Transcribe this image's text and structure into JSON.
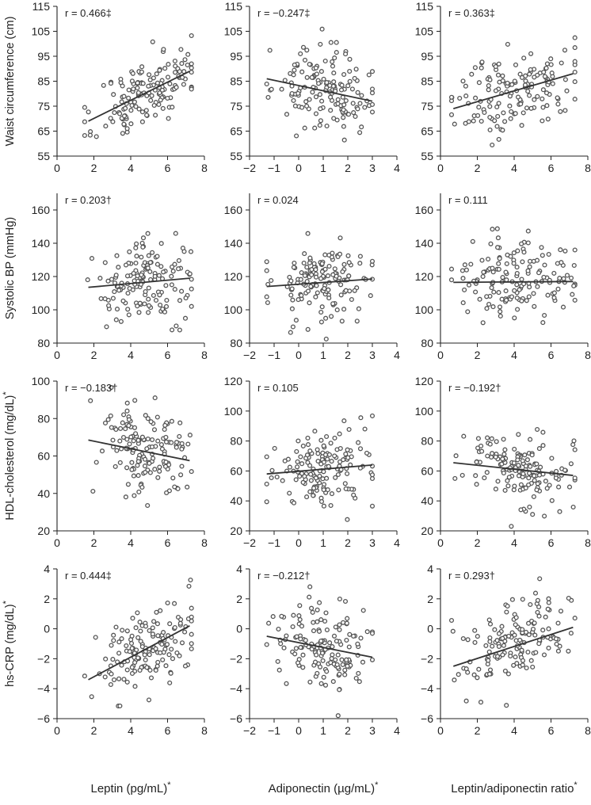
{
  "figure": {
    "type": "scatter_matrix",
    "row_labels": [
      "Waist circumference (cm)",
      "Systolic BP (mmHg)",
      "HDL-cholesterol (mg/dL)",
      "hs-CRP (mg/dL)"
    ],
    "row_label_stars": [
      "",
      "",
      "*",
      "*"
    ],
    "col_labels": [
      "Leptin (pg/mL)",
      "Adiponectin (µg/mL)",
      "Leptin/adiponectin ratio"
    ],
    "col_label_stars": [
      "*",
      "*",
      "*"
    ],
    "colors": {
      "point": "#555555",
      "line": "#333333",
      "axis": "#222222"
    }
  },
  "chart_data": [
    {
      "type": "scatter",
      "row": 0,
      "col": 0,
      "title": "r = 0.466‡",
      "xlabel": "Leptin (pg/mL)*",
      "ylabel": "Waist circumference (cm)",
      "xlim": [
        0,
        8
      ],
      "ylim": [
        55,
        115
      ],
      "xticks": [
        0,
        2,
        4,
        6,
        8
      ],
      "yticks": [
        55,
        65,
        75,
        85,
        95,
        105,
        115
      ],
      "trend": {
        "x1": 1.7,
        "y1": 69,
        "x2": 7.2,
        "y2": 89
      },
      "n_points": 150,
      "seed": 11,
      "xrange": [
        1.5,
        7.3
      ],
      "xcenter": 4.9,
      "resid": 7
    },
    {
      "type": "scatter",
      "row": 0,
      "col": 1,
      "title": "r = −0.247‡",
      "xlabel": "Adiponectin (µg/mL)*",
      "ylabel": "Waist circumference (cm)",
      "xlim": [
        -2,
        4
      ],
      "ylim": [
        55,
        115
      ],
      "xticks": [
        -2,
        -1,
        0,
        1,
        2,
        3,
        4
      ],
      "yticks": [
        55,
        65,
        75,
        85,
        95,
        105,
        115
      ],
      "trend": {
        "x1": -1.3,
        "y1": 86,
        "x2": 3.0,
        "y2": 77
      },
      "n_points": 150,
      "seed": 23,
      "xrange": [
        -1.3,
        3.0
      ],
      "xcenter": 1.0,
      "resid": 8
    },
    {
      "type": "scatter",
      "row": 0,
      "col": 2,
      "title": "r = 0.363‡",
      "xlabel": "Leptin/adiponectin ratio*",
      "ylabel": "Waist circumference (cm)",
      "xlim": [
        0,
        8
      ],
      "ylim": [
        55,
        115
      ],
      "xticks": [
        0,
        2,
        4,
        6,
        8
      ],
      "yticks": [
        55,
        65,
        75,
        85,
        95,
        105,
        115
      ],
      "trend": {
        "x1": 0.7,
        "y1": 74,
        "x2": 7.2,
        "y2": 88
      },
      "n_points": 150,
      "seed": 37,
      "xrange": [
        0.6,
        7.3
      ],
      "xcenter": 4.0,
      "resid": 8
    },
    {
      "type": "scatter",
      "row": 1,
      "col": 0,
      "title": "r = 0.203†",
      "xlabel": "Leptin (pg/mL)*",
      "ylabel": "Systolic BP (mmHg)",
      "xlim": [
        0,
        8
      ],
      "ylim": [
        80,
        170
      ],
      "xticks": [
        0,
        2,
        4,
        6,
        8
      ],
      "yticks": [
        80,
        100,
        120,
        140,
        160
      ],
      "trend": {
        "x1": 1.7,
        "y1": 113.5,
        "x2": 7.2,
        "y2": 119
      },
      "n_points": 150,
      "seed": 41,
      "xrange": [
        1.5,
        7.3
      ],
      "xcenter": 4.9,
      "resid": 12
    },
    {
      "type": "scatter",
      "row": 1,
      "col": 1,
      "title": "r = 0.024",
      "xlabel": "Adiponectin (µg/mL)*",
      "ylabel": "Systolic BP (mmHg)",
      "xlim": [
        -2,
        4
      ],
      "ylim": [
        80,
        170
      ],
      "xticks": [
        -2,
        -1,
        0,
        1,
        2,
        3,
        4
      ],
      "yticks": [
        80,
        100,
        120,
        140,
        160
      ],
      "trend": {
        "x1": -1.3,
        "y1": 114,
        "x2": 3.0,
        "y2": 118.5
      },
      "n_points": 150,
      "seed": 53,
      "xrange": [
        -1.3,
        3.0
      ],
      "xcenter": 1.0,
      "resid": 12
    },
    {
      "type": "scatter",
      "row": 1,
      "col": 2,
      "title": "r = 0.111",
      "xlabel": "Leptin/adiponectin ratio*",
      "ylabel": "Systolic BP (mmHg)",
      "xlim": [
        0,
        8
      ],
      "ylim": [
        80,
        170
      ],
      "xticks": [
        0,
        2,
        4,
        6,
        8
      ],
      "yticks": [
        80,
        100,
        120,
        140,
        160
      ],
      "trend": {
        "x1": 0.7,
        "y1": 116.5,
        "x2": 7.2,
        "y2": 117
      },
      "n_points": 150,
      "seed": 67,
      "xrange": [
        0.6,
        7.3
      ],
      "xcenter": 4.0,
      "resid": 12
    },
    {
      "type": "scatter",
      "row": 2,
      "col": 0,
      "title": "r = −0.183†",
      "xlabel": "Leptin (pg/mL)*",
      "ylabel": "HDL-cholesterol (mg/dL)*",
      "xlim": [
        0,
        8
      ],
      "ylim": [
        20,
        100
      ],
      "xticks": [
        0,
        2,
        4,
        6,
        8
      ],
      "yticks": [
        20,
        40,
        60,
        80,
        100
      ],
      "trend": {
        "x1": 1.7,
        "y1": 68.5,
        "x2": 7.2,
        "y2": 57.5
      },
      "n_points": 150,
      "seed": 71,
      "xrange": [
        1.5,
        7.3
      ],
      "xcenter": 4.9,
      "resid": 13
    },
    {
      "type": "scatter",
      "row": 2,
      "col": 1,
      "title": "r = 0.105",
      "xlabel": "Adiponectin (µg/mL)*",
      "ylabel": "HDL-cholesterol (mg/dL)*",
      "xlim": [
        -2,
        4
      ],
      "ylim": [
        20,
        120
      ],
      "xticks": [
        -2,
        -1,
        0,
        1,
        2,
        3,
        4
      ],
      "yticks": [
        20,
        40,
        60,
        80,
        100,
        120
      ],
      "trend": {
        "x1": -1.3,
        "y1": 58,
        "x2": 3.0,
        "y2": 64
      },
      "n_points": 150,
      "seed": 83,
      "xrange": [
        -1.3,
        3.0
      ],
      "xcenter": 1.0,
      "resid": 13
    },
    {
      "type": "scatter",
      "row": 2,
      "col": 2,
      "title": "r = −0.192†",
      "xlabel": "Leptin/adiponectin ratio*",
      "ylabel": "HDL-cholesterol (mg/dL)*",
      "xlim": [
        0,
        8
      ],
      "ylim": [
        20,
        120
      ],
      "xticks": [
        0,
        2,
        4,
        6,
        8
      ],
      "yticks": [
        20,
        40,
        60,
        80,
        100,
        120
      ],
      "trend": {
        "x1": 0.7,
        "y1": 65.5,
        "x2": 7.2,
        "y2": 57
      },
      "n_points": 150,
      "seed": 97,
      "xrange": [
        0.6,
        7.3
      ],
      "xcenter": 4.0,
      "resid": 13
    },
    {
      "type": "scatter",
      "row": 3,
      "col": 0,
      "title": "r = 0.444‡",
      "xlabel": "Leptin (pg/mL)*",
      "ylabel": "hs-CRP (mg/dL)*",
      "xlim": [
        0,
        8
      ],
      "ylim": [
        -6,
        4
      ],
      "xticks": [
        0,
        2,
        4,
        6,
        8
      ],
      "yticks": [
        -6,
        -4,
        -2,
        0,
        2,
        4
      ],
      "trend": {
        "x1": 1.7,
        "y1": -3.4,
        "x2": 7.2,
        "y2": 0.2
      },
      "n_points": 150,
      "seed": 101,
      "xrange": [
        1.5,
        7.3
      ],
      "xcenter": 4.9,
      "resid": 1.3
    },
    {
      "type": "scatter",
      "row": 3,
      "col": 1,
      "title": "r = −0.212†",
      "xlabel": "Adiponectin (µg/mL)*",
      "ylabel": "hs-CRP (mg/dL)*",
      "xlim": [
        -2,
        4
      ],
      "ylim": [
        -6,
        4
      ],
      "xticks": [
        -2,
        -1,
        0,
        1,
        2,
        3,
        4
      ],
      "yticks": [
        -6,
        -4,
        -2,
        0,
        2,
        4
      ],
      "trend": {
        "x1": -1.3,
        "y1": -0.5,
        "x2": 3.0,
        "y2": -1.9
      },
      "n_points": 150,
      "seed": 113,
      "xrange": [
        -1.3,
        3.0
      ],
      "xcenter": 1.0,
      "resid": 1.4
    },
    {
      "type": "scatter",
      "row": 3,
      "col": 2,
      "title": "r = 0.293†",
      "xlabel": "Leptin/adiponectin ratio*",
      "ylabel": "hs-CRP (mg/dL)*",
      "xlim": [
        0,
        8
      ],
      "ylim": [
        -6,
        4
      ],
      "xticks": [
        0,
        2,
        4,
        6,
        8
      ],
      "yticks": [
        -6,
        -4,
        -2,
        0,
        2,
        4
      ],
      "trend": {
        "x1": 0.7,
        "y1": -2.5,
        "x2": 7.2,
        "y2": 0.1
      },
      "n_points": 150,
      "seed": 127,
      "xrange": [
        0.6,
        7.3
      ],
      "xcenter": 4.0,
      "resid": 1.4
    }
  ]
}
